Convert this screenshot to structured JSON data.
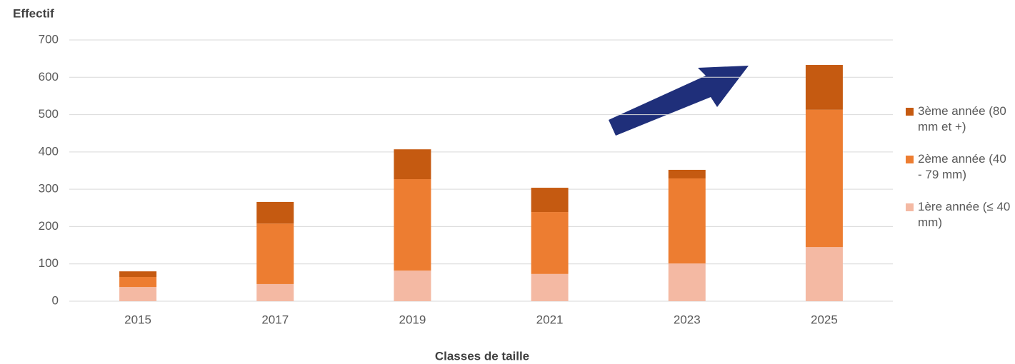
{
  "chart_data": {
    "type": "stacked_bar",
    "y_title": "Effectif",
    "x_title": "Classes de taille",
    "categories": [
      "2015",
      "2017",
      "2019",
      "2021",
      "2023",
      "2025"
    ],
    "series": [
      {
        "name": "1ère année (≤ 40 mm)",
        "color": "#f4b9a3",
        "values": [
          38,
          46,
          82,
          73,
          101,
          145
        ]
      },
      {
        "name": "2ème année (40 - 79 mm)",
        "color": "#ed7d31",
        "values": [
          27,
          162,
          245,
          166,
          228,
          368
        ]
      },
      {
        "name": "3ème année (80 mm et +)",
        "color": "#c55a11",
        "values": [
          15,
          58,
          80,
          65,
          23,
          120
        ]
      }
    ],
    "ylim": [
      0,
      700
    ],
    "yticks": [
      0,
      100,
      200,
      300,
      400,
      500,
      600,
      700
    ],
    "grid": true,
    "legend": "right"
  }
}
